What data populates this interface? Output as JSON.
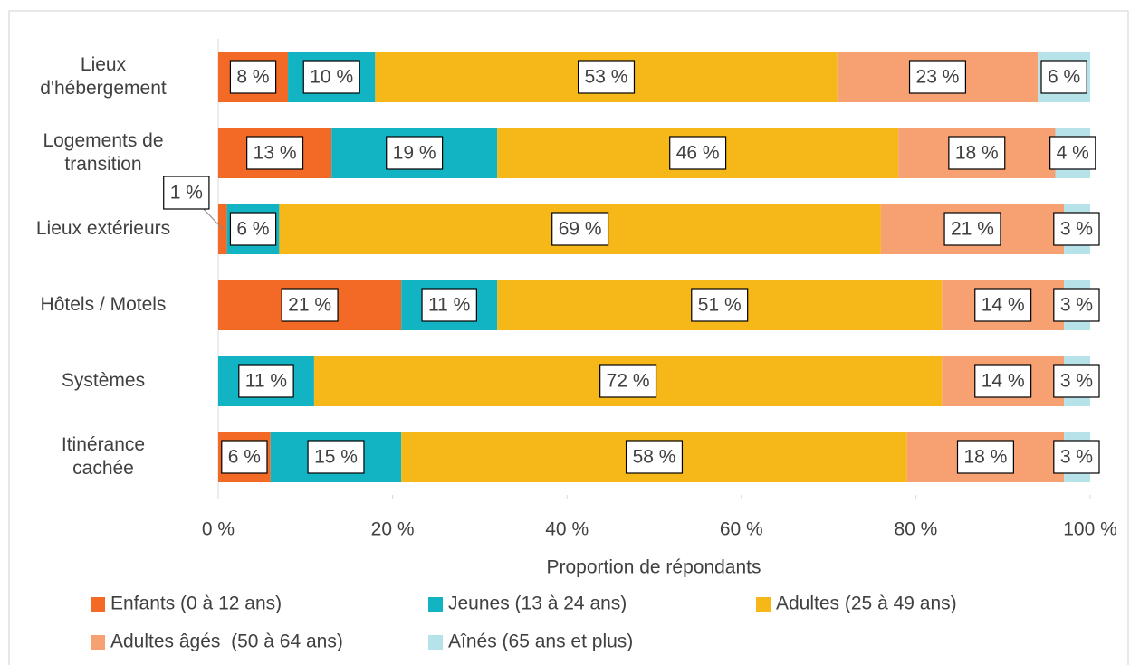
{
  "chart_data": {
    "type": "stacked_barh",
    "categories": [
      "Lieux\nd'hébergement",
      "Logements de\ntransition",
      "Lieux extérieurs",
      "Hôtels / Motels",
      "Systèmes",
      "Itinérance\ncachée"
    ],
    "series": [
      {
        "name": "Enfants (0 à 12 ans)",
        "color": "#f26a26",
        "values": [
          8,
          13,
          1,
          21,
          null,
          6
        ],
        "value_labels": [
          "8 %",
          "13 %",
          "1 %",
          "21 %",
          null,
          "6 %"
        ]
      },
      {
        "name": "Jeunes (13 à 24 ans)",
        "color": "#12b4c4",
        "values": [
          10,
          19,
          6,
          11,
          11,
          15
        ],
        "value_labels": [
          "10 %",
          "19 %",
          "6 %",
          "11 %",
          "11 %",
          "15 %"
        ]
      },
      {
        "name": "Adultes (25 à 49 ans)",
        "color": "#f5b818",
        "values": [
          53,
          46,
          69,
          51,
          72,
          58
        ],
        "value_labels": [
          "53 %",
          "46 %",
          "69 %",
          "51 %",
          "72 %",
          "58 %"
        ]
      },
      {
        "name": "Adultes âgés  (50 à 64 ans)",
        "color": "#f7a172",
        "values": [
          23,
          18,
          21,
          14,
          14,
          18
        ],
        "value_labels": [
          "23 %",
          "18 %",
          "21 %",
          "14 %",
          "14 %",
          "18 %"
        ]
      },
      {
        "name": "Aînés (65 ans et plus)",
        "color": "#b5e3e9",
        "values": [
          6,
          4,
          3,
          3,
          3,
          3
        ],
        "value_labels": [
          "6 %",
          "4 %",
          "3 %",
          "3 %",
          "3 %",
          "3 %"
        ]
      }
    ],
    "xlabel": "Proportion de répondants",
    "xlim": [
      0,
      100
    ],
    "xticks": [
      {
        "value": 0,
        "label": "0 %"
      },
      {
        "value": 20,
        "label": "20 %"
      },
      {
        "value": 40,
        "label": "40 %"
      },
      {
        "value": 60,
        "label": "60 %"
      },
      {
        "value": 80,
        "label": "80 %"
      },
      {
        "value": 100,
        "label": "100 %"
      }
    ],
    "grid": false,
    "legend": "bottom"
  }
}
